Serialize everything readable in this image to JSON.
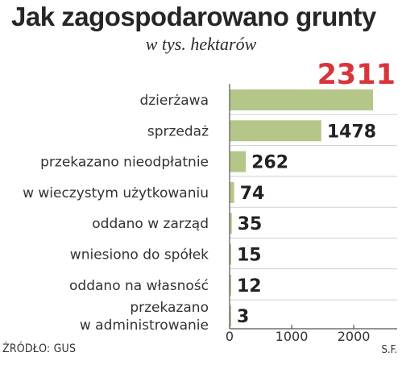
{
  "title": "Jak zagospodarowano grunty",
  "subtitle": "w tys. hektarów",
  "source": "ŹRÓDŁO: GUS",
  "author": "S.F.",
  "colors": {
    "bar": "#b5c689",
    "highlight": "#d8353b",
    "axis": "#555555"
  },
  "chart_data": {
    "type": "bar",
    "orientation": "horizontal",
    "categories": [
      "dzierżawa",
      "sprzedaż",
      "przekazano nieodpłatnie",
      "w wieczystym użytkowaniu",
      "oddano w zarząd",
      "wniesiono do spółek",
      "oddano na własność",
      "przekazano\nw administrowanie"
    ],
    "values": [
      2311,
      1478,
      262,
      74,
      35,
      15,
      12,
      3
    ],
    "value_labels": [
      "2311",
      "1478",
      "262",
      "74",
      "35",
      "15",
      "12",
      "3"
    ],
    "xlim": [
      0,
      2700
    ],
    "xticks": [
      0,
      1000,
      2000
    ],
    "xtick_labels": [
      "0",
      "1000",
      "2000"
    ],
    "title": "Jak zagospodarowano grunty",
    "subtitle": "w tys. hektarów",
    "xlabel": "",
    "ylabel": "",
    "grid": false,
    "legend": "none"
  }
}
